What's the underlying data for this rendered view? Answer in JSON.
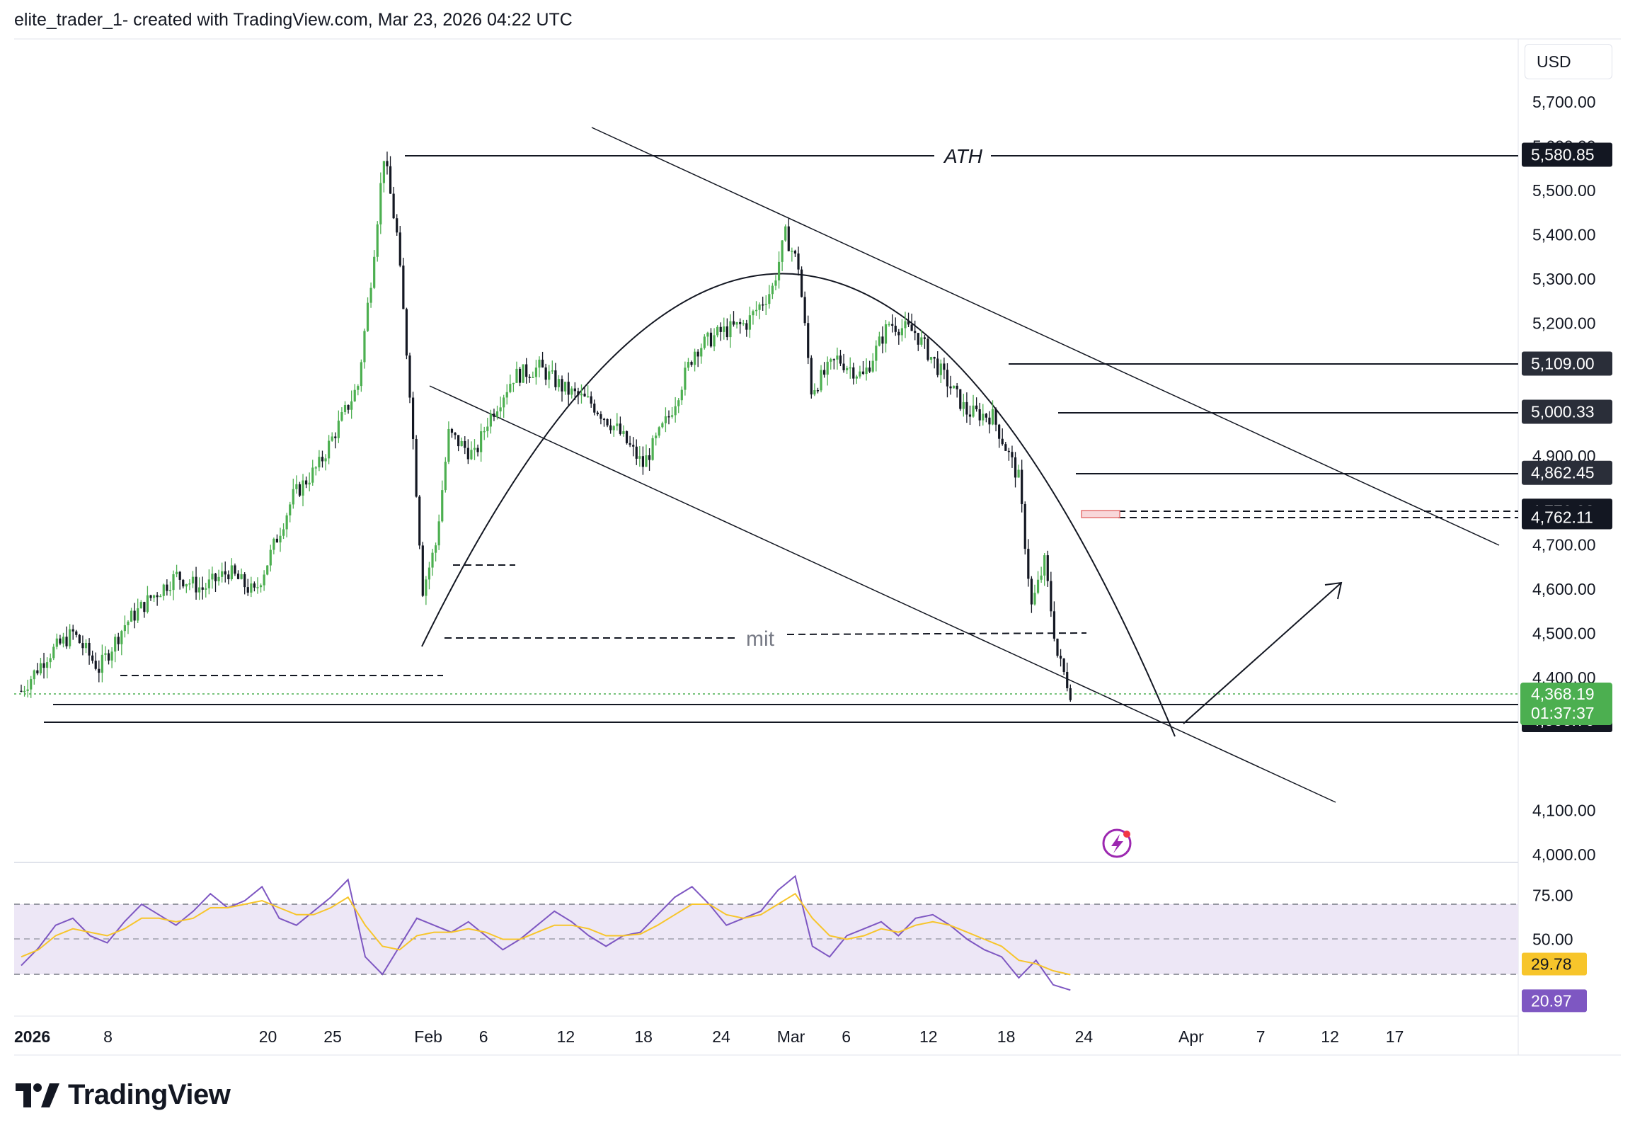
{
  "header": {
    "attribution": "elite_trader_1- created with TradingView.com, Mar 23, 2026 04:22 UTC"
  },
  "currency": "USD",
  "brand": {
    "name": "TradingView",
    "icon": "tradingview-logo-icon"
  },
  "colors": {
    "bull": "#4caf50",
    "bear": "#131722",
    "rsi_line": "#7e57c2",
    "rsi_ma": "#f7c52b",
    "rsi_band": "#ede7f6",
    "current_price_bg": "#4caf50",
    "dark_label_bg": "#131722",
    "grey_label_bg": "#2a2e39",
    "zone_fill": "#f8d7da"
  },
  "chart_data": [
    {
      "type": "candlestick",
      "title": "",
      "price_axis": {
        "ticks": [
          "5,700.00",
          "5,600.00",
          "5,500.00",
          "5,400.00",
          "5,300.00",
          "5,200.00",
          "4,900.00",
          "4,700.00",
          "4,600.00",
          "4,500.00",
          "4,400.00",
          "4,100.00",
          "4,000.00"
        ],
        "ylim": [
          4000,
          5750
        ]
      },
      "time_axis": {
        "ticks": [
          "2026",
          "8",
          "20",
          "25",
          "Feb",
          "6",
          "12",
          "18",
          "24",
          "Mar",
          "6",
          "12",
          "18",
          "24",
          "Apr",
          "7",
          "12",
          "17"
        ]
      },
      "price_path": [
        [
          "Jan 1",
          4370
        ],
        [
          "Jan 3",
          4450
        ],
        [
          "Jan 5",
          4500
        ],
        [
          "Jan 7",
          4420
        ],
        [
          "Jan 9",
          4520
        ],
        [
          "Jan 11",
          4580
        ],
        [
          "Jan 13",
          4630
        ],
        [
          "Jan 15",
          4600
        ],
        [
          "Jan 17",
          4640
        ],
        [
          "Jan 19",
          4590
        ],
        [
          "Jan 20",
          4660
        ],
        [
          "Jan 22",
          4810
        ],
        [
          "Jan 24",
          4880
        ],
        [
          "Jan 26",
          5000
        ],
        [
          "Jan 27",
          5060
        ],
        [
          "Jan 28",
          5300
        ],
        [
          "Jan 29",
          5580
        ],
        [
          "Jan 30",
          5400
        ],
        [
          "Jan 31",
          5050
        ],
        [
          "Feb 1",
          4600
        ],
        [
          "Feb 2",
          4700
        ],
        [
          "Feb 3",
          4950
        ],
        [
          "Feb 5",
          4900
        ],
        [
          "Feb 6",
          4980
        ],
        [
          "Feb 8",
          5080
        ],
        [
          "Feb 10",
          5100
        ],
        [
          "Feb 12",
          5050
        ],
        [
          "Feb 14",
          5020
        ],
        [
          "Feb 16",
          4960
        ],
        [
          "Feb 18",
          4880
        ],
        [
          "Feb 20",
          4990
        ],
        [
          "Feb 22",
          5140
        ],
        [
          "Feb 24",
          5180
        ],
        [
          "Feb 26",
          5200
        ],
        [
          "Feb 28",
          5280
        ],
        [
          "Mar 1",
          5400
        ],
        [
          "Mar 2",
          5330
        ],
        [
          "Mar 3",
          5050
        ],
        [
          "Mar 5",
          5120
        ],
        [
          "Mar 7",
          5080
        ],
        [
          "Mar 9",
          5200
        ],
        [
          "Mar 11",
          5180
        ],
        [
          "Mar 13",
          5090
        ],
        [
          "Mar 15",
          5000
        ],
        [
          "Mar 17",
          4990
        ],
        [
          "Mar 19",
          4850
        ],
        [
          "Mar 20",
          4560
        ],
        [
          "Mar 21",
          4660
        ],
        [
          "Mar 22",
          4450
        ],
        [
          "Mar 23",
          4368.19
        ]
      ],
      "price_labels": [
        {
          "text": "5,580.85",
          "value": 5580.85,
          "style": "dark"
        },
        {
          "text": "5,109.00",
          "value": 5109.0,
          "style": "grey"
        },
        {
          "text": "5,000.33",
          "value": 5000.33,
          "style": "grey"
        },
        {
          "text": "4,862.45",
          "value": 4862.45,
          "style": "grey"
        },
        {
          "text": "4,776.92",
          "value": 4776.92,
          "style": "dark"
        },
        {
          "text": "4,762.11",
          "value": 4762.11,
          "style": "dark"
        },
        {
          "text": "4,345.26",
          "value": 4345.26,
          "style": "dark"
        },
        {
          "text": "4,303.76",
          "value": 4303.76,
          "style": "dark"
        }
      ],
      "current_price": {
        "value": 4368.19,
        "text": "4,368.19",
        "countdown": "01:37:37"
      },
      "annotations": [
        {
          "text": "ATH",
          "value": 5580.85
        },
        {
          "text": "mit",
          "value": 4500
        }
      ]
    },
    {
      "type": "line",
      "title": "RSI",
      "ticks": [
        "75.00",
        "50.00"
      ],
      "ylim": [
        5,
        95
      ],
      "bands": [
        30,
        50,
        70
      ],
      "series": [
        {
          "values": [
            35,
            45,
            58,
            62,
            52,
            48,
            60,
            70,
            64,
            58,
            66,
            76,
            68,
            72,
            80,
            62,
            58,
            66,
            74,
            84,
            40,
            30,
            46,
            62,
            58,
            54,
            60,
            52,
            44,
            50,
            58,
            66,
            60,
            52,
            46,
            52,
            54,
            64,
            74,
            80,
            70,
            58,
            62,
            66,
            78,
            86,
            46,
            40,
            52,
            56,
            60,
            52,
            62,
            64,
            58,
            50,
            44,
            40,
            28,
            38,
            24,
            21
          ]
        },
        {
          "label": "29.78",
          "values": [
            40,
            44,
            52,
            56,
            54,
            52,
            56,
            62,
            62,
            60,
            62,
            68,
            68,
            70,
            72,
            68,
            64,
            64,
            68,
            74,
            58,
            46,
            44,
            52,
            54,
            54,
            56,
            54,
            50,
            50,
            54,
            58,
            58,
            56,
            52,
            52,
            53,
            58,
            64,
            70,
            70,
            64,
            62,
            64,
            70,
            76,
            62,
            52,
            50,
            52,
            56,
            54,
            58,
            60,
            58,
            54,
            50,
            46,
            38,
            36,
            32,
            29.78
          ]
        }
      ],
      "value_labels": [
        {
          "text": "29.78",
          "value": 29.78,
          "style": "yellow"
        },
        {
          "text": "20.97",
          "value": 20.97,
          "style": "purple"
        }
      ]
    }
  ]
}
